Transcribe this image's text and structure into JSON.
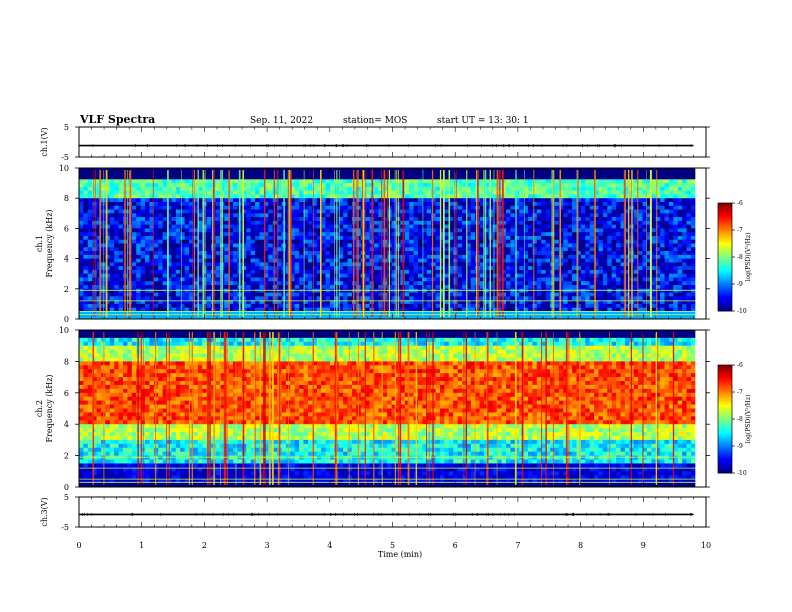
{
  "header": {
    "title": "VLF Spectra",
    "date": "Sep. 11, 2022",
    "station": "station= MOS",
    "start_ut": "start  UT =   13: 30: 1"
  },
  "chart_data": [
    {
      "type": "line",
      "name": "ch1-waveform",
      "ylabel": "ch.1(V)",
      "ylim": [
        -5,
        5
      ],
      "yticks": [
        "5",
        "-5"
      ],
      "x": [
        0,
        9.8
      ],
      "y": [
        -1.2,
        -1.2
      ],
      "xlim": [
        0,
        10
      ]
    },
    {
      "type": "heatmap",
      "name": "ch1-spectrogram",
      "ylabel": "ch.1\nFrequency (kHz)",
      "ylim": [
        0,
        10
      ],
      "yticks": [
        "0",
        "2",
        "4",
        "6",
        "8",
        "10"
      ],
      "xlim": [
        0,
        10
      ],
      "colorbar": {
        "label": "log(PSD)(V²/Hz)",
        "ticks": [
          "-6",
          "-7",
          "-8",
          "-9",
          "-10"
        ],
        "range": [
          -10,
          -6
        ]
      },
      "description_levels": {
        "background": -9.5,
        "band_8_9kHz": -8.2,
        "sferics": -7.0
      }
    },
    {
      "type": "heatmap",
      "name": "ch2-spectrogram",
      "ylabel": "ch.2\nFrequency (kHz)",
      "ylim": [
        0,
        10
      ],
      "yticks": [
        "0",
        "2",
        "4",
        "6",
        "8",
        "10"
      ],
      "xlim": [
        0,
        10
      ],
      "colorbar": {
        "label": "log(PSD)(V²/Hz)",
        "ticks": [
          "-6",
          "-7",
          "-8",
          "-9",
          "-10"
        ],
        "range": [
          -10,
          -6
        ]
      },
      "description_levels": {
        "band_4_8kHz": -6.8,
        "edges": -8.5,
        "background": -9.5
      }
    },
    {
      "type": "line",
      "name": "ch3-waveform",
      "ylabel": "ch.3(V)",
      "ylim": [
        -5,
        5
      ],
      "yticks": [
        "5",
        "-5"
      ],
      "x": [
        0,
        9.8
      ],
      "y": [
        -0.8,
        -0.8
      ],
      "xlim": [
        0,
        10
      ]
    }
  ],
  "xaxis": {
    "label": "Time  (min)",
    "ticks": [
      "0",
      "1",
      "2",
      "3",
      "4",
      "5",
      "6",
      "7",
      "8",
      "9",
      "10"
    ]
  }
}
